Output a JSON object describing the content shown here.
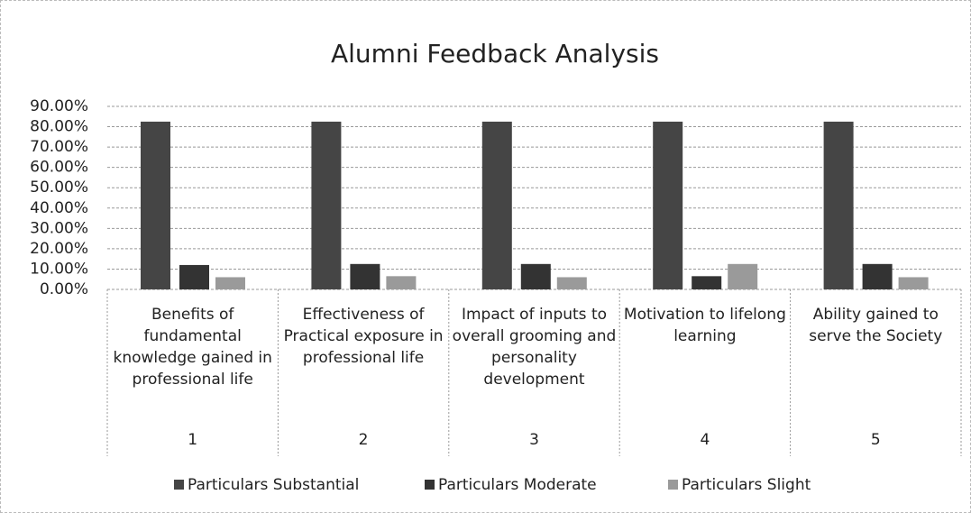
{
  "chart_data": {
    "type": "bar",
    "title": "Alumni Feedback Analysis",
    "categories": [
      "1",
      "2",
      "3",
      "4",
      "5"
    ],
    "category_descriptions": [
      "Benefits of fundamental knowledge gained in professional life",
      "Effectiveness of Practical exposure in professional life",
      "Impact of inputs to overall grooming and personality development",
      "Motivation to lifelong learning",
      "Ability gained to serve the Society"
    ],
    "series": [
      {
        "name": "Particulars Substantial",
        "color": "#454545",
        "values": [
          82.5,
          82.5,
          82.5,
          82.5,
          82.5
        ]
      },
      {
        "name": "Particulars Moderate",
        "color": "#333333",
        "values": [
          12,
          12.5,
          12.5,
          6.5,
          12.5
        ]
      },
      {
        "name": "Particulars Slight",
        "color": "#9a9a9a",
        "values": [
          6,
          6.5,
          6,
          12.5,
          6
        ]
      }
    ],
    "ylim": [
      0,
      90
    ],
    "yticks": [
      {
        "value": 0,
        "label": "0.00%"
      },
      {
        "value": 10,
        "label": "10.00%"
      },
      {
        "value": 20,
        "label": "20.00%"
      },
      {
        "value": 30,
        "label": "30.00%"
      },
      {
        "value": 40,
        "label": "40.00%"
      },
      {
        "value": 50,
        "label": "50.00%"
      },
      {
        "value": 60,
        "label": "60.00%"
      },
      {
        "value": 70,
        "label": "70.00%"
      },
      {
        "value": 80,
        "label": "80.00%"
      },
      {
        "value": 90,
        "label": "90.00%"
      }
    ],
    "grid": true,
    "legend": "bottom"
  }
}
